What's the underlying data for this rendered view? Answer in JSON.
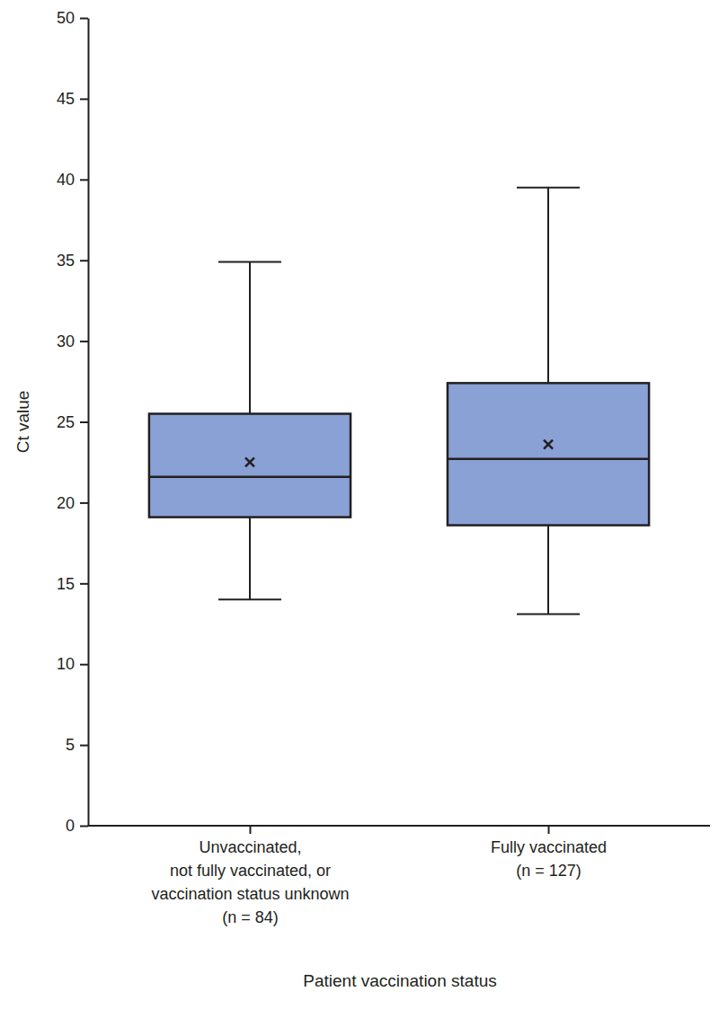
{
  "chart_data": {
    "type": "box",
    "x_label": "Patient vaccination status",
    "y_label": "Ct value",
    "categories": [
      "Unvaccinated,\nnot fully vaccinated, or\nvaccination status unknown\n(n = 84)",
      "Fully vaccinated\n(n = 127)"
    ],
    "min": [
      14.0,
      13.1
    ],
    "q1": [
      19.1,
      18.6
    ],
    "median": [
      21.6,
      22.7
    ],
    "q3": [
      25.5,
      27.4
    ],
    "max": [
      34.9,
      39.5
    ],
    "mean": [
      22.5,
      23.6
    ],
    "marker": "x",
    "color": "#8aa1d6",
    "ylim": [
      0,
      50
    ],
    "yticks": [
      0,
      5,
      10,
      15,
      20,
      25,
      30,
      35,
      40,
      45,
      50
    ],
    "grid": false
  }
}
